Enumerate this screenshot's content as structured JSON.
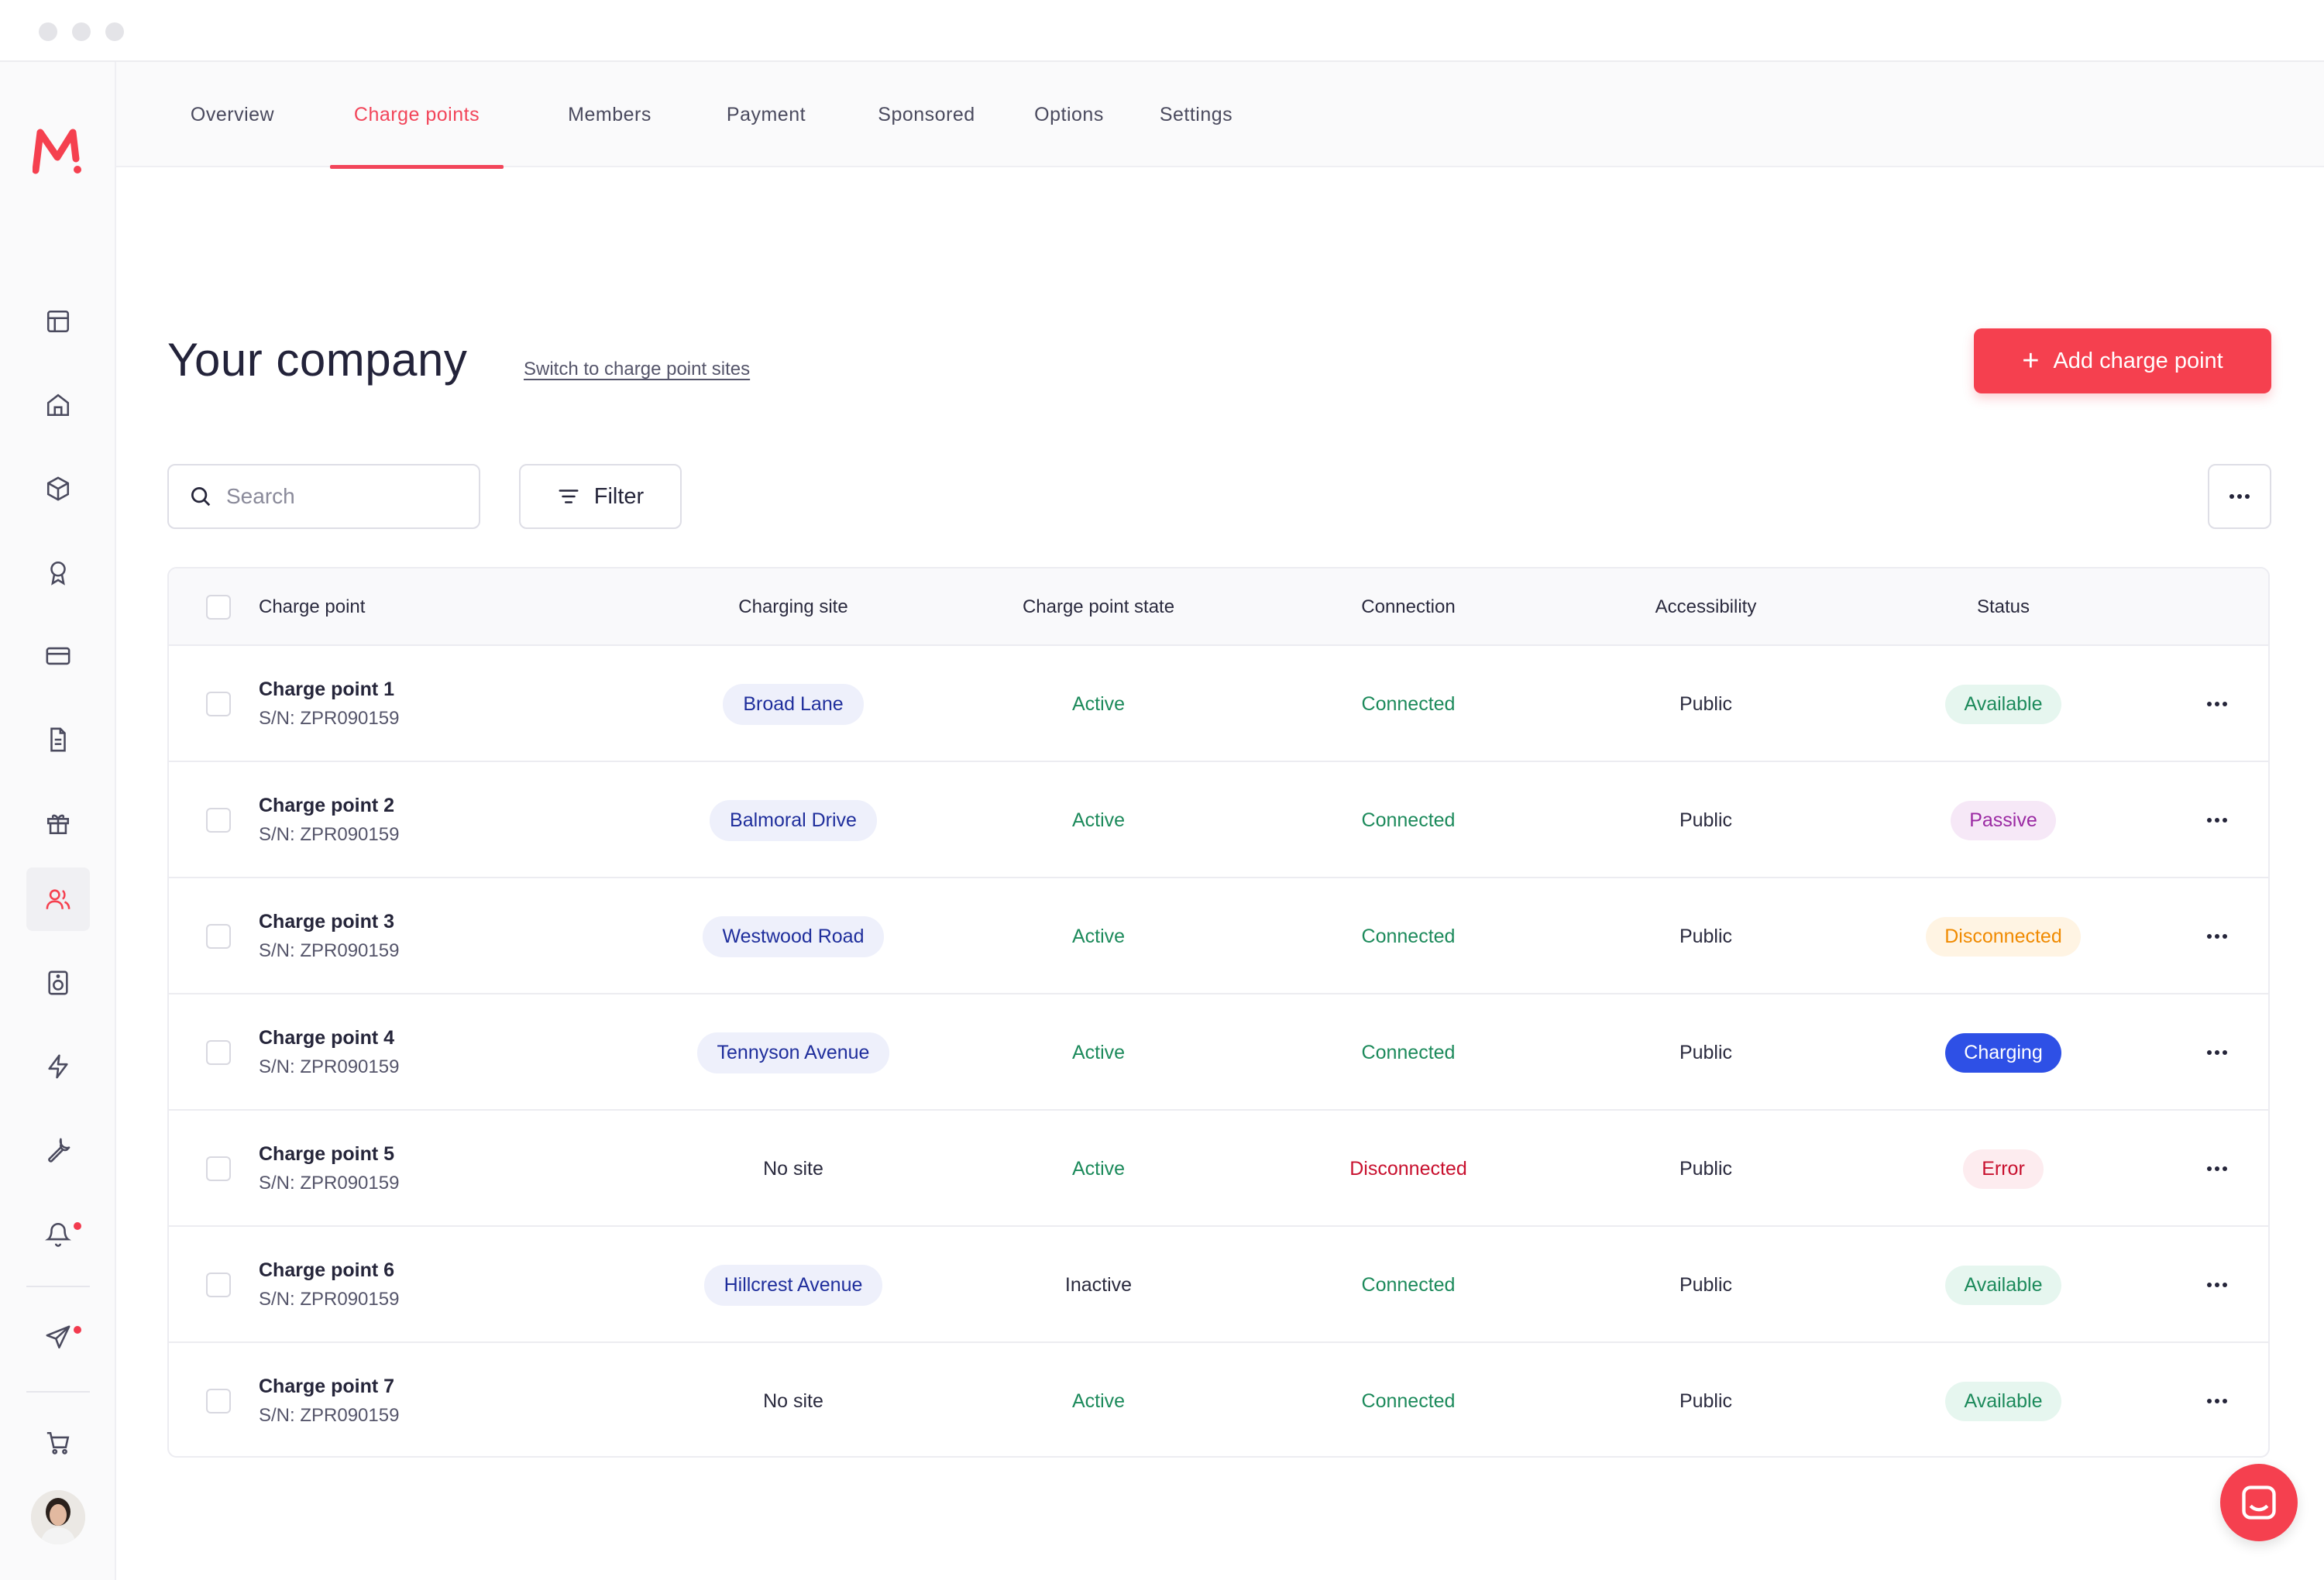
{
  "nav": {
    "tabs": [
      {
        "label": "Overview",
        "active": false
      },
      {
        "label": "Charge points",
        "active": true
      },
      {
        "label": "Members",
        "active": false
      },
      {
        "label": "Payment",
        "active": false
      },
      {
        "label": "Sponsored",
        "active": false
      },
      {
        "label": "Options",
        "active": false
      },
      {
        "label": "Settings",
        "active": false
      }
    ]
  },
  "sidebar": {
    "logo": "M!",
    "icons": [
      "layout-icon",
      "home-icon",
      "box-icon",
      "award-icon",
      "credit-card-icon",
      "file-icon",
      "gift-icon",
      "users-icon",
      "speaker-icon",
      "bolt-icon",
      "wrench-icon",
      "bell-icon",
      "send-icon",
      "cart-icon"
    ],
    "active": "users-icon"
  },
  "page": {
    "title": "Your company",
    "switch_link": "Switch to charge point sites",
    "add_button": "Add charge point"
  },
  "toolbar": {
    "search_placeholder": "Search",
    "filter_label": "Filter"
  },
  "table": {
    "columns": [
      "Charge point",
      "Charging site",
      "Charge point state",
      "Connection",
      "Accessibility",
      "Status"
    ],
    "rows": [
      {
        "name": "Charge point 1",
        "sn": "S/N: ZPR090159",
        "site": "Broad Lane",
        "state": "Active",
        "connection": "Connected",
        "access": "Public",
        "status": "Available"
      },
      {
        "name": "Charge point 2",
        "sn": "S/N: ZPR090159",
        "site": "Balmoral Drive",
        "state": "Active",
        "connection": "Connected",
        "access": "Public",
        "status": "Passive"
      },
      {
        "name": "Charge point 3",
        "sn": "S/N: ZPR090159",
        "site": "Westwood Road",
        "state": "Active",
        "connection": "Connected",
        "access": "Public",
        "status": "Disconnected"
      },
      {
        "name": "Charge point 4",
        "sn": "S/N: ZPR090159",
        "site": "Tennyson Avenue",
        "state": "Active",
        "connection": "Connected",
        "access": "Public",
        "status": "Charging"
      },
      {
        "name": "Charge point 5",
        "sn": "S/N: ZPR090159",
        "site": "No site",
        "state": "Active",
        "connection": "Disconnected",
        "access": "Public",
        "status": "Error"
      },
      {
        "name": "Charge point 6",
        "sn": "S/N: ZPR090159",
        "site": "Hillcrest Avenue",
        "state": "Inactive",
        "connection": "Connected",
        "access": "Public",
        "status": "Available"
      },
      {
        "name": "Charge point 7",
        "sn": "S/N: ZPR090159",
        "site": "No site",
        "state": "Active",
        "connection": "Connected",
        "access": "Public",
        "status": "Available"
      }
    ]
  },
  "colors": {
    "accent": "#f5404f",
    "status": {
      "Available": {
        "bg": "#e6f6ef",
        "fg": "#1c8a5b"
      },
      "Passive": {
        "bg": "#f6e8f7",
        "fg": "#9b2aa3"
      },
      "Disconnected": {
        "bg": "#fff4e3",
        "fg": "#f08a00"
      },
      "Charging": {
        "bg": "#2e50e6",
        "fg": "#ffffff"
      },
      "Error": {
        "bg": "#fdecef",
        "fg": "#c8102e"
      }
    }
  }
}
